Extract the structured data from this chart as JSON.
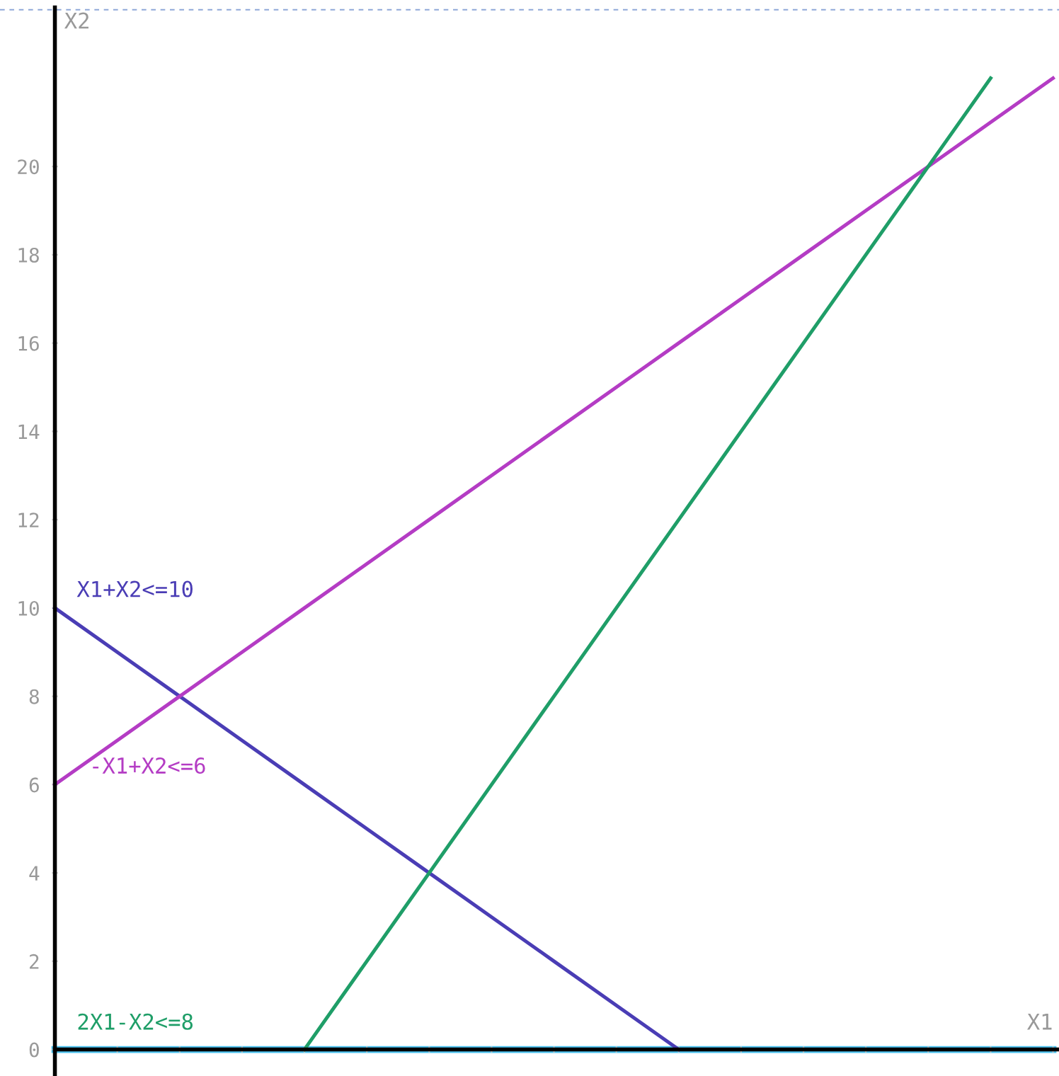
{
  "chart_data": {
    "type": "line",
    "xlabel": "X1",
    "ylabel": "X2",
    "categories": [
      null,
      null,
      null,
      null,
      null,
      null,
      null,
      null,
      null,
      null,
      null,
      null,
      null,
      null,
      null,
      null,
      null
    ],
    "ylim": [
      -0.6,
      23.6
    ],
    "yticks": [
      0,
      2,
      4,
      6,
      8,
      10,
      12,
      14,
      16,
      18,
      20
    ],
    "legend": "left",
    "marker": "none",
    "line_style": "solid",
    "series": [
      {
        "name": "X1+X2<=10",
        "color": "#4a3db5",
        "values": [
          10,
          9,
          8,
          7,
          6,
          5,
          4,
          3,
          2,
          1,
          0,
          null,
          null,
          null,
          null,
          null,
          null
        ]
      },
      {
        "name": "-X1+X2<=6",
        "color": "#b43cc4",
        "values": [
          6,
          7,
          8,
          9,
          10,
          11,
          12,
          13,
          14,
          15,
          16,
          17,
          18,
          19,
          20,
          21,
          22
        ]
      },
      {
        "name": "2X1-X2<=8",
        "color": "#1f9e68",
        "values": [
          null,
          null,
          null,
          null,
          0,
          2,
          4,
          6,
          8,
          10,
          12,
          14,
          16,
          18,
          20,
          22,
          null
        ]
      },
      {
        "color": "#4cc3f0",
        "values": [
          0,
          0,
          0,
          0,
          0,
          0,
          0,
          0,
          0,
          0,
          0,
          0,
          0,
          0,
          0,
          0,
          0
        ]
      }
    ]
  }
}
